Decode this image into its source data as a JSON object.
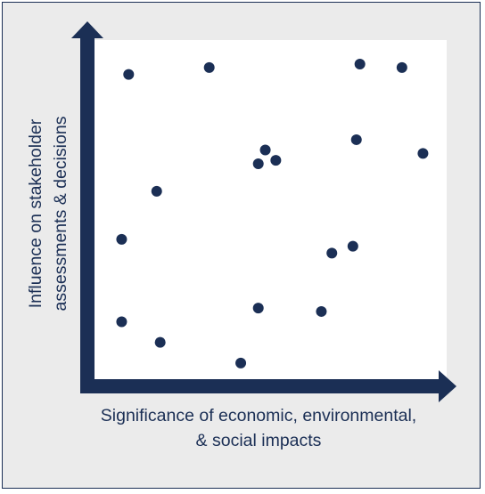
{
  "chart_data": {
    "type": "scatter",
    "xlabel": [
      "Significance of economic, environmental,",
      "& social impacts"
    ],
    "ylabel": [
      "Influence on stakeholder",
      "assessments & decisions"
    ],
    "xlim": [
      0,
      10
    ],
    "ylim": [
      0,
      10
    ],
    "grid": false,
    "points": [
      {
        "x": 1.0,
        "y": 9.0
      },
      {
        "x": 3.3,
        "y": 9.2
      },
      {
        "x": 7.6,
        "y": 9.3
      },
      {
        "x": 8.8,
        "y": 9.2
      },
      {
        "x": 4.9,
        "y": 6.8
      },
      {
        "x": 4.7,
        "y": 6.4
      },
      {
        "x": 5.2,
        "y": 6.5
      },
      {
        "x": 7.5,
        "y": 7.1
      },
      {
        "x": 9.4,
        "y": 6.7
      },
      {
        "x": 1.8,
        "y": 5.6
      },
      {
        "x": 0.8,
        "y": 4.2
      },
      {
        "x": 6.8,
        "y": 3.8
      },
      {
        "x": 7.4,
        "y": 4.0
      },
      {
        "x": 4.7,
        "y": 2.2
      },
      {
        "x": 6.5,
        "y": 2.1
      },
      {
        "x": 0.8,
        "y": 1.8
      },
      {
        "x": 1.9,
        "y": 1.2
      },
      {
        "x": 4.2,
        "y": 0.6
      }
    ]
  },
  "colors": {
    "navy": "#1b2f55",
    "panel": "#ebebeb",
    "plot_bg": "#ffffff"
  }
}
